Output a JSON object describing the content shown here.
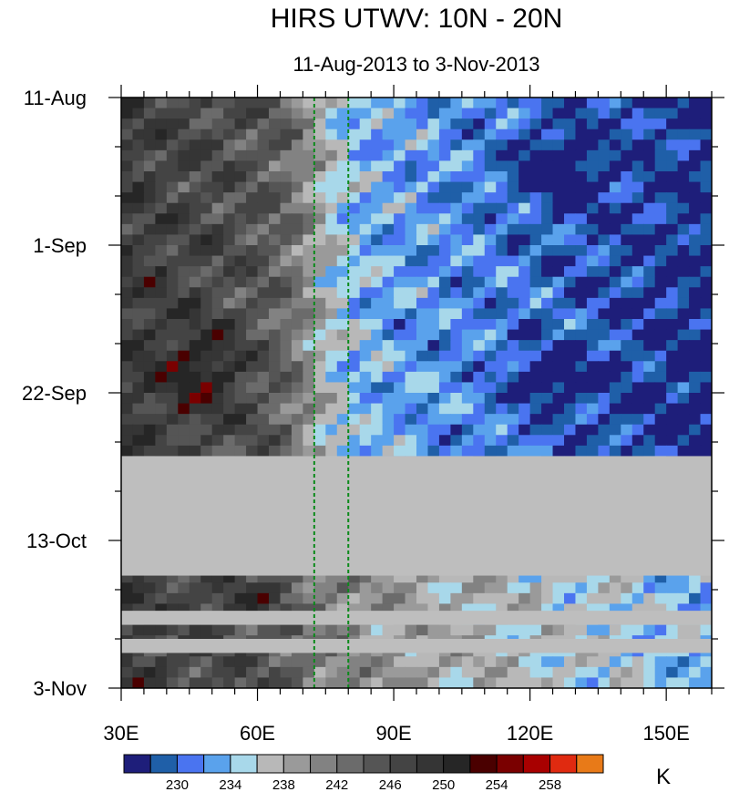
{
  "chart_data": {
    "type": "heatmap",
    "title": "HIRS UTWV: 10N - 20N",
    "subtitle": "11-Aug-2013 to 3-Nov-2013",
    "units": "K",
    "x_axis": {
      "label": "",
      "range": [
        30,
        160
      ],
      "ticks": [
        30,
        60,
        90,
        120,
        150
      ],
      "tick_labels": [
        "30E",
        "60E",
        "90E",
        "120E",
        "150E"
      ]
    },
    "y_axis": {
      "label": "",
      "range_days": [
        0,
        84
      ],
      "inverted": true,
      "ticks_days": [
        0,
        21,
        42,
        63,
        84
      ],
      "tick_labels": [
        "11-Aug",
        "1-Sep",
        "22-Sep",
        "13-Oct",
        "3-Nov"
      ]
    },
    "missing_data_bands_days": [
      [
        51,
        68
      ],
      [
        73,
        75
      ],
      [
        77,
        79
      ]
    ],
    "reference_lines_lon": [
      72.5,
      80
    ],
    "colorbar": {
      "levels": [
        228,
        230,
        232,
        234,
        236,
        238,
        240,
        242,
        244,
        246,
        248,
        250,
        252,
        254,
        256,
        258,
        260
      ],
      "labels": [
        "230",
        "234",
        "238",
        "242",
        "246",
        "250",
        "254",
        "258"
      ],
      "colors": [
        "#1e1e7a",
        "#1f5fa8",
        "#4a74f0",
        "#5aa2ec",
        "#a8d8ea",
        "#b8b8b8",
        "#9a9a9a",
        "#828282",
        "#6b6b6b",
        "#555555",
        "#444444",
        "#353535",
        "#262626",
        "#4a0000",
        "#7a0000",
        "#a80000",
        "#e02a10",
        "#e87a18"
      ]
    },
    "field_description": "Time-longitude Hovmoller of upper tropospheric water vapor brightness temperature"
  }
}
